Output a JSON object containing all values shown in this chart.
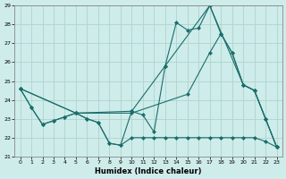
{
  "xlabel": "Humidex (Indice chaleur)",
  "bg_color": "#ceecea",
  "grid_color": "#aed4d0",
  "line_color": "#1a6e6a",
  "xlim": [
    -0.5,
    23.5
  ],
  "ylim": [
    21,
    29
  ],
  "yticks": [
    21,
    22,
    23,
    24,
    25,
    26,
    27,
    28,
    29
  ],
  "xticks": [
    0,
    1,
    2,
    3,
    4,
    5,
    6,
    7,
    8,
    9,
    10,
    11,
    12,
    13,
    14,
    15,
    16,
    17,
    18,
    19,
    20,
    21,
    22,
    23
  ],
  "series": [
    {
      "x": [
        0,
        1,
        2,
        3,
        4,
        5,
        6,
        7,
        8,
        9,
        10,
        11,
        12,
        13,
        14,
        15,
        16,
        17,
        18,
        19,
        20,
        21,
        22,
        23
      ],
      "y": [
        24.6,
        23.6,
        22.7,
        22.9,
        23.1,
        23.3,
        23.0,
        22.8,
        21.7,
        21.6,
        23.4,
        23.2,
        22.3,
        25.8,
        28.1,
        27.7,
        27.8,
        29.0,
        27.5,
        26.5,
        24.8,
        24.5,
        23.0,
        21.5
      ]
    },
    {
      "x": [
        0,
        5,
        10,
        13,
        17,
        20,
        21,
        22,
        23
      ],
      "y": [
        24.6,
        23.3,
        23.4,
        25.8,
        29.0,
        24.8,
        24.5,
        23.0,
        21.5
      ]
    },
    {
      "comment": "gentle rising line from 0,24.6 to 20,24.8 via 17=26.5",
      "x": [
        0,
        5,
        10,
        15,
        17,
        18,
        19,
        20,
        21,
        22,
        23
      ],
      "y": [
        24.6,
        23.3,
        23.3,
        24.3,
        26.5,
        27.5,
        26.5,
        24.8,
        24.5,
        23.0,
        21.5
      ]
    },
    {
      "x": [
        0,
        1,
        2,
        3,
        4,
        5,
        6,
        7,
        8,
        9,
        10,
        11,
        12,
        13,
        14,
        15,
        16,
        17,
        18,
        19,
        20,
        21,
        22,
        23
      ],
      "y": [
        24.6,
        23.6,
        22.7,
        22.9,
        23.1,
        23.3,
        23.0,
        22.8,
        21.7,
        21.6,
        22.0,
        22.0,
        22.0,
        22.0,
        22.0,
        22.0,
        22.0,
        22.0,
        22.0,
        22.0,
        22.0,
        22.0,
        21.8,
        21.5
      ]
    }
  ]
}
